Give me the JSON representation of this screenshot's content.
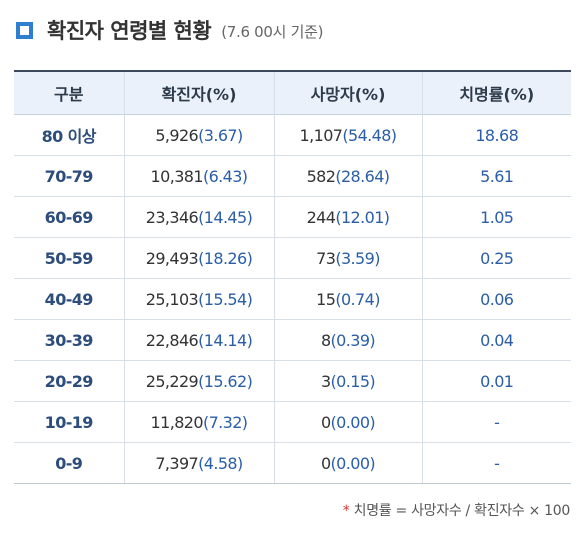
{
  "title": "확진자 연령별 현황",
  "subtitle": "(7.6 00시 기준)",
  "table": {
    "headers": [
      "구분",
      "확진자(%)",
      "사망자(%)",
      "치명률(%)"
    ],
    "rows": [
      {
        "age": "80 이상",
        "confirmed": "5,926",
        "confirmed_pct": "(3.67)",
        "deaths": "1,107",
        "deaths_pct": "(54.48)",
        "fatality": "18.68"
      },
      {
        "age": "70-79",
        "confirmed": "10,381",
        "confirmed_pct": "(6.43)",
        "deaths": "582",
        "deaths_pct": "(28.64)",
        "fatality": "5.61"
      },
      {
        "age": "60-69",
        "confirmed": "23,346",
        "confirmed_pct": "(14.45)",
        "deaths": "244",
        "deaths_pct": "(12.01)",
        "fatality": "1.05"
      },
      {
        "age": "50-59",
        "confirmed": "29,493",
        "confirmed_pct": "(18.26)",
        "deaths": "73",
        "deaths_pct": "(3.59)",
        "fatality": "0.25"
      },
      {
        "age": "40-49",
        "confirmed": "25,103",
        "confirmed_pct": "(15.54)",
        "deaths": "15",
        "deaths_pct": "(0.74)",
        "fatality": "0.06"
      },
      {
        "age": "30-39",
        "confirmed": "22,846",
        "confirmed_pct": "(14.14)",
        "deaths": "8",
        "deaths_pct": "(0.39)",
        "fatality": "0.04"
      },
      {
        "age": "20-29",
        "confirmed": "25,229",
        "confirmed_pct": "(15.62)",
        "deaths": "3",
        "deaths_pct": "(0.15)",
        "fatality": "0.01"
      },
      {
        "age": "10-19",
        "confirmed": "11,820",
        "confirmed_pct": "(7.32)",
        "deaths": "0",
        "deaths_pct": "(0.00)",
        "fatality": "-"
      },
      {
        "age": "0-9",
        "confirmed": "7,397",
        "confirmed_pct": "(4.58)",
        "deaths": "0",
        "deaths_pct": "(0.00)",
        "fatality": "-"
      }
    ]
  },
  "footnote": {
    "marker": "*",
    "text": "치명률 = 사망자수 / 확진자수 × 100"
  },
  "colors": {
    "accent": "#2f7fd0",
    "header_bg": "#eaf1fb",
    "percent_text": "#2a5ea8",
    "age_text": "#2d4d7c",
    "footnote_marker": "#d0312d"
  }
}
